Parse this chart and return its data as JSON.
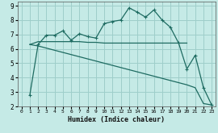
{
  "xlabel": "Humidex (Indice chaleur)",
  "xlim": [
    -0.5,
    23.5
  ],
  "ylim": [
    2,
    9.3
  ],
  "xticks": [
    0,
    1,
    2,
    3,
    4,
    5,
    6,
    7,
    8,
    9,
    10,
    11,
    12,
    13,
    14,
    15,
    16,
    17,
    18,
    19,
    20,
    21,
    22,
    23
  ],
  "yticks": [
    2,
    3,
    4,
    5,
    6,
    7,
    8,
    9
  ],
  "background_color": "#c5eae6",
  "grid_color": "#9ececa",
  "line_color": "#1e6b61",
  "curve1_x": [
    1,
    2,
    3,
    4,
    5,
    6,
    7,
    8,
    9,
    10,
    11,
    12,
    13,
    14,
    15,
    16,
    17,
    18,
    19,
    20,
    21,
    22,
    23
  ],
  "curve1_y": [
    2.8,
    6.3,
    6.95,
    6.95,
    7.25,
    6.6,
    7.05,
    6.85,
    6.75,
    7.75,
    7.9,
    8.0,
    8.85,
    8.55,
    8.2,
    8.7,
    8.0,
    7.5,
    6.4,
    4.6,
    5.55,
    3.3,
    2.1
  ],
  "curve2_x": [
    1,
    2,
    3,
    4,
    5,
    6,
    7,
    8,
    9,
    10,
    11,
    12,
    13,
    14,
    15,
    16,
    17,
    18,
    19,
    20
  ],
  "curve2_y": [
    6.3,
    6.5,
    6.5,
    6.5,
    6.5,
    6.5,
    6.5,
    6.45,
    6.45,
    6.4,
    6.4,
    6.4,
    6.4,
    6.4,
    6.4,
    6.4,
    6.4,
    6.4,
    6.4,
    6.4
  ],
  "curve3_x": [
    1,
    2,
    3,
    4,
    5,
    6,
    7,
    8,
    9,
    10,
    11,
    12,
    13,
    14,
    15,
    16,
    17,
    18,
    19,
    20,
    21,
    22,
    23
  ],
  "curve3_y": [
    6.3,
    6.2,
    6.05,
    5.9,
    5.75,
    5.6,
    5.45,
    5.3,
    5.15,
    5.0,
    4.85,
    4.7,
    4.55,
    4.4,
    4.25,
    4.1,
    3.95,
    3.8,
    3.65,
    3.5,
    3.3,
    2.2,
    2.1
  ]
}
